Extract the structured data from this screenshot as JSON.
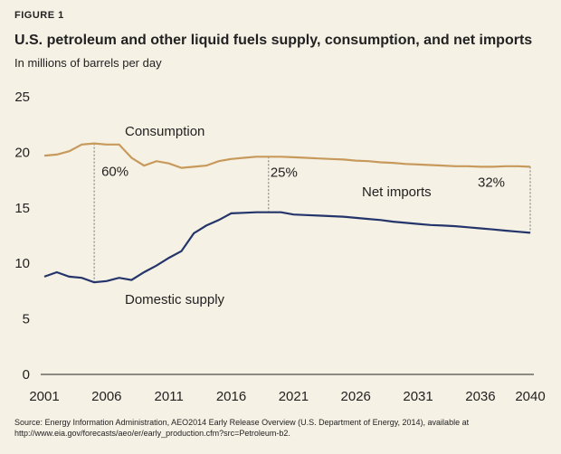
{
  "figure_label": "FIGURE 1",
  "title": "U.S. petroleum and other liquid fuels supply, consumption, and net imports",
  "subtitle": "In millions of barrels per day",
  "source": "Source: Energy Information Administration, AEO2014 Early Release Overview (U.S. Department of Energy, 2014), available at http://www.eia.gov/forecasts/aeo/er/early_production.cfm?src=Petroleum-b2.",
  "chart_data": {
    "type": "line",
    "title": "U.S. petroleum and other liquid fuels supply, consumption, and net imports",
    "ylabel": "In millions of barrels per day",
    "xlim": [
      2001,
      2040
    ],
    "ylim": [
      0,
      25
    ],
    "yticks": [
      0,
      5,
      10,
      15,
      20,
      25
    ],
    "xticks": [
      2001,
      2006,
      2011,
      2016,
      2021,
      2026,
      2031,
      2036,
      2040
    ],
    "grid": false,
    "colors": {
      "consumption": "#c79a5c",
      "domestic": "#23356a",
      "dropline": "#555555"
    },
    "x": [
      2001,
      2002,
      2003,
      2004,
      2005,
      2006,
      2007,
      2008,
      2009,
      2010,
      2011,
      2012,
      2013,
      2014,
      2015,
      2016,
      2017,
      2018,
      2019,
      2020,
      2021,
      2022,
      2023,
      2024,
      2025,
      2026,
      2027,
      2028,
      2029,
      2030,
      2031,
      2032,
      2033,
      2034,
      2035,
      2036,
      2037,
      2038,
      2039,
      2040
    ],
    "series": [
      {
        "name": "Consumption",
        "values": [
          19.7,
          19.8,
          20.1,
          20.7,
          20.8,
          20.7,
          20.7,
          19.5,
          18.8,
          19.2,
          19.0,
          18.6,
          18.7,
          18.8,
          19.2,
          19.4,
          19.5,
          19.6,
          19.6,
          19.6,
          19.55,
          19.5,
          19.45,
          19.4,
          19.35,
          19.25,
          19.2,
          19.1,
          19.05,
          18.95,
          18.9,
          18.85,
          18.8,
          18.75,
          18.75,
          18.7,
          18.7,
          18.75,
          18.75,
          18.7
        ]
      },
      {
        "name": "Domestic supply",
        "values": [
          8.8,
          9.2,
          8.8,
          8.7,
          8.3,
          8.4,
          8.7,
          8.5,
          9.2,
          9.8,
          10.5,
          11.1,
          12.7,
          13.4,
          13.9,
          14.5,
          14.55,
          14.6,
          14.6,
          14.6,
          14.4,
          14.35,
          14.3,
          14.25,
          14.2,
          14.1,
          14.0,
          13.9,
          13.75,
          13.65,
          13.55,
          13.45,
          13.4,
          13.35,
          13.25,
          13.15,
          13.05,
          12.95,
          12.85,
          12.75
        ]
      }
    ],
    "net_imports_markers": [
      {
        "year": 2005,
        "label": "60%"
      },
      {
        "year": 2019,
        "label": "25%"
      },
      {
        "year": 2040,
        "label": "32%"
      }
    ],
    "annotations": [
      "Consumption",
      "Net imports",
      "Domestic supply"
    ]
  }
}
